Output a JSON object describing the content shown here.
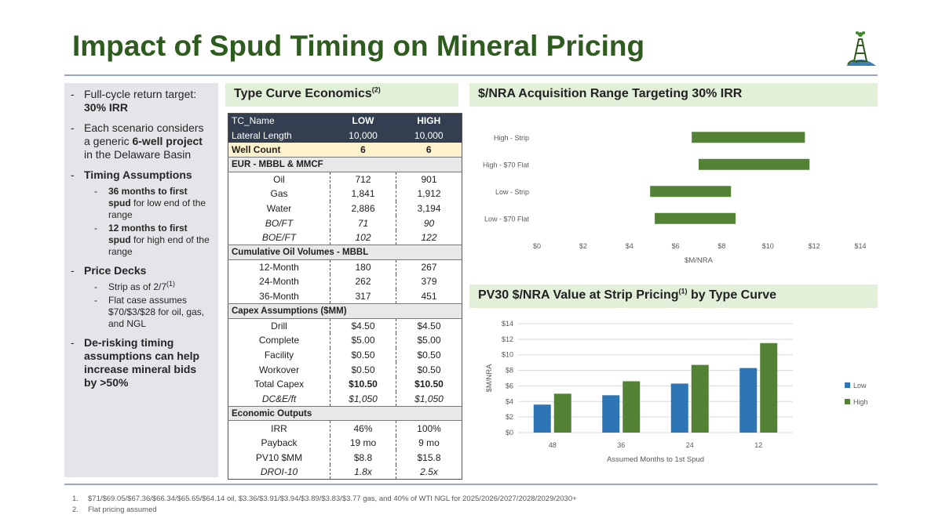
{
  "title": "Impact of Spud Timing on Mineral Pricing",
  "logo": "oil-derrick-logo-icon",
  "left_panel": {
    "b1": {
      "text": "Full-cycle return target: ",
      "bold": "30% IRR"
    },
    "b2": {
      "text1": "Each scenario considers a generic ",
      "bold": "6-well project",
      "text2": " in the Delaware Basin"
    },
    "b3": {
      "bold": "Timing Assumptions"
    },
    "b3_sub1": {
      "bold": "36 months to first spud",
      "text": " for low end of the range"
    },
    "b3_sub2": {
      "bold": "12 months to first spud",
      "text": " for high end of the range"
    },
    "b4": {
      "bold": "Price Decks"
    },
    "b4_sub1": {
      "text": "Strip as of 2/7",
      "sup": "(1)"
    },
    "b4_sub2": {
      "text": "Flat case assumes $70/$3/$28 for oil, gas, and NGL"
    },
    "b5": {
      "bold": "De-risking timing assumptions can help increase mineral bids by >50%"
    }
  },
  "type_curve": {
    "heading": "Type Curve Economics",
    "heading_sup": "(2)",
    "header": [
      "TC_Name",
      "LOW",
      "HIGH"
    ],
    "lateral": [
      "Lateral Length",
      "10,000",
      "10,000"
    ],
    "well_count": [
      "Well Count",
      "6",
      "6"
    ],
    "sec_eur": "EUR - MBBL & MMCF",
    "eur": [
      [
        "Oil",
        "712",
        "901"
      ],
      [
        "Gas",
        "1,841",
        "1,912"
      ],
      [
        "Water",
        "2,886",
        "3,194"
      ],
      [
        "BO/FT",
        "71",
        "90"
      ],
      [
        "BOE/FT",
        "102",
        "122"
      ]
    ],
    "sec_cum": "Cumulative Oil Volumes - MBBL",
    "cum": [
      [
        "12-Month",
        "180",
        "267"
      ],
      [
        "24-Month",
        "262",
        "379"
      ],
      [
        "36-Month",
        "317",
        "451"
      ]
    ],
    "sec_capex": "Capex Assumptions ($MM)",
    "capex": [
      [
        "Drill",
        "$4.50",
        "$4.50"
      ],
      [
        "Complete",
        "$5.00",
        "$5.00"
      ],
      [
        "Facility",
        "$0.50",
        "$0.50"
      ],
      [
        "Workover",
        "$0.50",
        "$0.50"
      ],
      [
        "Total Capex",
        "$10.50",
        "$10.50"
      ],
      [
        "DC&E/ft",
        "$1,050",
        "$1,050"
      ]
    ],
    "sec_econ": "Economic Outputs",
    "econ": [
      [
        "IRR",
        "46%",
        "100%"
      ],
      [
        "Payback",
        "19 mo",
        "9 mo"
      ],
      [
        "PV10 $MM",
        "$8.8",
        "$15.8"
      ],
      [
        "DROI-10",
        "1.8x",
        "2.5x"
      ]
    ]
  },
  "range_heading": "$/NRA Acquisition Range Targeting 30% IRR",
  "pv_heading": {
    "text1": "PV30 $/NRA Value at Strip Pricing",
    "sup": "(1)",
    "text2": " by Type Curve"
  },
  "chart_data": [
    {
      "type": "bar",
      "orientation": "horizontal-floating",
      "categories": [
        "High - Strip",
        "High - $70 Flat",
        "Low - Strip",
        "Low - $70 Flat"
      ],
      "ranges": [
        [
          6.7,
          11.6
        ],
        [
          7.0,
          11.8
        ],
        [
          4.9,
          8.4
        ],
        [
          5.1,
          8.6
        ]
      ],
      "xlabel": "$M/NRA",
      "xlim": [
        0,
        14
      ],
      "xticks": [
        "$0",
        "$2",
        "$4",
        "$6",
        "$8",
        "$10",
        "$12",
        "$14"
      ],
      "color": "#548235",
      "grid": false
    },
    {
      "type": "bar",
      "categories": [
        "48",
        "36",
        "24",
        "12"
      ],
      "series": [
        {
          "name": "Low",
          "values": [
            3.6,
            4.8,
            6.3,
            8.3
          ],
          "color": "#2e75b6"
        },
        {
          "name": "High",
          "values": [
            5.0,
            6.6,
            8.7,
            11.5
          ],
          "color": "#548235"
        }
      ],
      "xlabel": "Assumed Months to 1st Spud",
      "ylabel": "$M/NRA",
      "ylim": [
        0,
        14
      ],
      "yticks": [
        "$0",
        "$2",
        "$4",
        "$6",
        "$8",
        "$10",
        "$12",
        "$14"
      ],
      "grid": true,
      "legend": "right"
    }
  ],
  "footnotes": [
    {
      "n": "1.",
      "text": "$71/$69.05/$67.36/$66.34/$65.65/$64.14 oil, $3.36/$3.91/$3.94/$3.89/$3.83/$3.77 gas, and 40% of WTI NGL for 2025/2026/2027/2028/2029/2030+"
    },
    {
      "n": "2.",
      "text": "Flat pricing assumed"
    }
  ]
}
